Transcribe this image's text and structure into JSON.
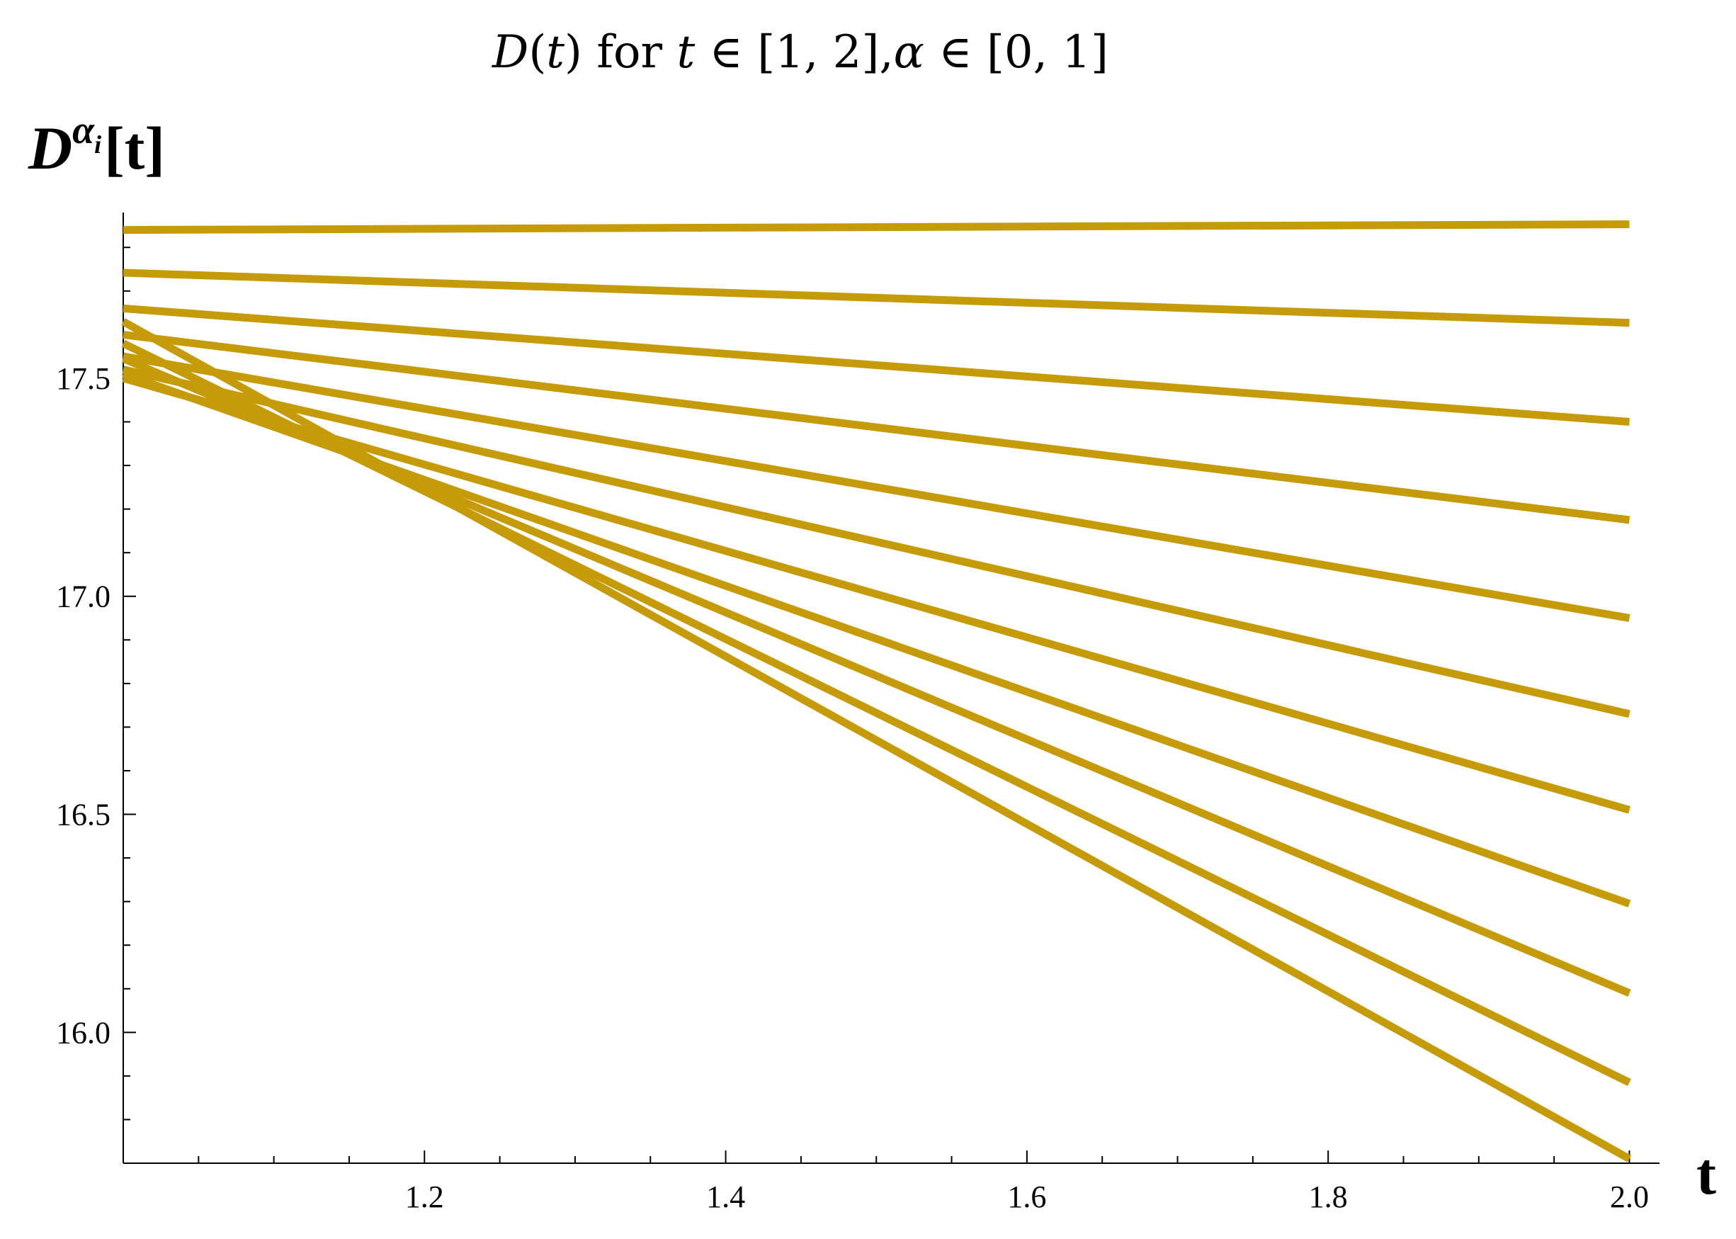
{
  "chart_data": {
    "type": "line",
    "title": {
      "func": "D",
      "open_paren": "(",
      "var": "t",
      "close_paren": ")",
      "word": " for ",
      "var2": "t",
      "set_text": " ∈ [1, 2],",
      "alpha": "α",
      "set_text2": " ∈ [0, 1]"
    },
    "ylabel": {
      "base": "D",
      "sup": "α",
      "sub": "i",
      "rest": "[t]"
    },
    "xlabel": "t",
    "xlim": [
      1.0,
      2.02
    ],
    "ylim": [
      15.7,
      17.88
    ],
    "x_ticks": [
      {
        "value": 1.2,
        "label": "1.2"
      },
      {
        "value": 1.4,
        "label": "1.4"
      },
      {
        "value": 1.6,
        "label": "1.6"
      },
      {
        "value": 1.8,
        "label": "1.8"
      },
      {
        "value": 2.0,
        "label": "2.0"
      }
    ],
    "y_ticks": [
      {
        "value": 16.0,
        "label": "16.0"
      },
      {
        "value": 16.5,
        "label": "16.5"
      },
      {
        "value": 17.0,
        "label": "17.0"
      },
      {
        "value": 17.5,
        "label": "17.5"
      }
    ],
    "x_minor_step": 0.05,
    "y_minor_step": 0.1,
    "color": "#C59B09",
    "series": [
      {
        "x": [
          1.0,
          2.0
        ],
        "y": [
          17.84,
          17.853
        ]
      },
      {
        "x": [
          1.0,
          2.0
        ],
        "y": [
          17.742,
          17.627
        ]
      },
      {
        "x": [
          1.0,
          2.0
        ],
        "y": [
          17.66,
          17.4
        ]
      },
      {
        "x": [
          1.0,
          2.0
        ],
        "y": [
          17.6,
          17.175
        ]
      },
      {
        "x": [
          1.0,
          2.0
        ],
        "y": [
          17.55,
          16.95
        ]
      },
      {
        "x": [
          1.0,
          2.0
        ],
        "y": [
          17.52,
          16.73
        ]
      },
      {
        "x": [
          1.0,
          2.0
        ],
        "y": [
          17.5,
          16.51
        ]
      },
      {
        "x": [
          1.0,
          2.0
        ],
        "y": [
          17.51,
          16.295
        ]
      },
      {
        "x": [
          1.0,
          2.0
        ],
        "y": [
          17.545,
          16.09
        ]
      },
      {
        "x": [
          1.0,
          2.0
        ],
        "y": [
          17.58,
          15.885
        ]
      },
      {
        "x": [
          1.0,
          2.0
        ],
        "y": [
          17.63,
          15.71
        ]
      }
    ]
  }
}
